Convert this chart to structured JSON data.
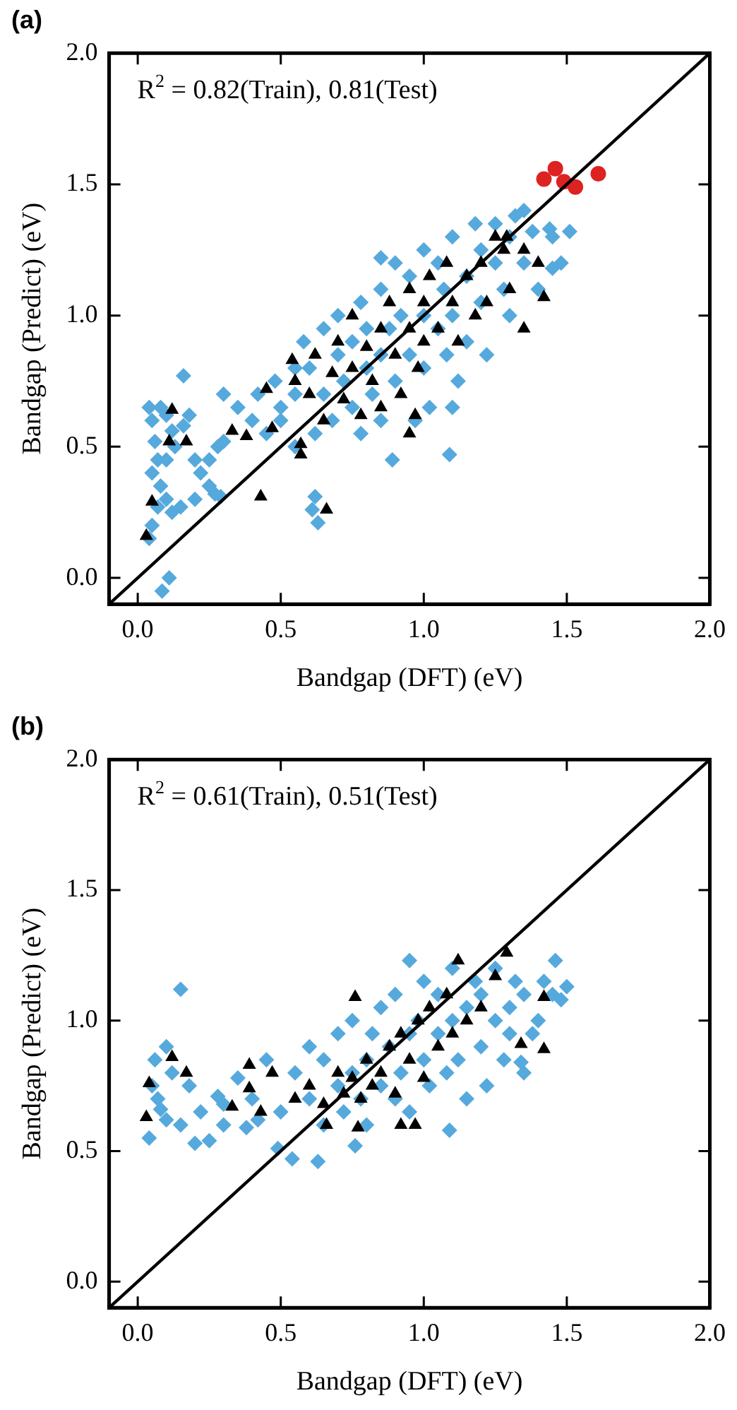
{
  "chart_data": [
    {
      "type": "scatter",
      "title": "(a)",
      "xlabel": "Bandgap (DFT) (eV)",
      "ylabel": "Bandgap (Predict) (eV)",
      "annotations": [
        "R$^{2}$ = 0.82(Train), 0.81(Test)"
      ],
      "xlim": [
        -0.1,
        2.0
      ],
      "ylim": [
        -0.1,
        2.0
      ],
      "xticks": [
        {
          "value": 0,
          "label": "0.0"
        },
        {
          "value": 0.5,
          "label": "0.5"
        },
        {
          "value": 1,
          "label": "1.0"
        },
        {
          "value": 1.5,
          "label": "1.5"
        },
        {
          "value": 2,
          "label": "2.0"
        }
      ],
      "yticks": [
        {
          "value": 0,
          "label": "0.0"
        },
        {
          "value": 0.5,
          "label": "0.5"
        },
        {
          "value": 1,
          "label": "1.0"
        },
        {
          "value": 1.5,
          "label": "1.5"
        },
        {
          "value": 2,
          "label": "2.0"
        }
      ],
      "legend": false,
      "grid": false,
      "series": [
        {
          "type": "scatter",
          "marker": "diamond",
          "color": "#56a9dc",
          "x": [
            0.05,
            0.06,
            0.07,
            0.05,
            0.08,
            0.1,
            0.07,
            0.12,
            0.15,
            0.1,
            0.13,
            0.16,
            0.18,
            0.2,
            0.22,
            0.25,
            0.2,
            0.08,
            0.1,
            0.12,
            0.05,
            0.04,
            0.11,
            0.085,
            0.25,
            0.28,
            0.3,
            0.35,
            0.3,
            0.4,
            0.45,
            0.42,
            0.48,
            0.5,
            0.55,
            0.55,
            0.62,
            0.63,
            0.61,
            0.29,
            0.27,
            0.16,
            0.04,
            0.5,
            0.55,
            0.58,
            0.6,
            0.62,
            0.65,
            0.65,
            0.68,
            0.7,
            0.7,
            0.72,
            0.75,
            0.75,
            0.78,
            0.78,
            0.8,
            0.8,
            0.82,
            0.85,
            0.85,
            0.85,
            0.88,
            0.9,
            0.9,
            0.92,
            0.95,
            0.95,
            0.97,
            1.0,
            1.0,
            1.0,
            1.02,
            1.05,
            1.05,
            1.07,
            1.08,
            1.1,
            1.1,
            1.12,
            1.15,
            1.15,
            1.18,
            1.2,
            1.2,
            1.22,
            1.25,
            1.25,
            1.28,
            1.3,
            1.3,
            1.32,
            1.35,
            1.38,
            1.4,
            1.45,
            1.45,
            1.35,
            1.09,
            1.1,
            0.85,
            1.44,
            1.51,
            1.48,
            0.89
          ],
          "values": [
            0.6,
            0.52,
            0.45,
            0.4,
            0.35,
            0.3,
            0.27,
            0.25,
            0.27,
            0.45,
            0.5,
            0.58,
            0.62,
            0.45,
            0.4,
            0.35,
            0.3,
            0.65,
            0.62,
            0.56,
            0.2,
            0.15,
            0.0,
            -0.05,
            0.45,
            0.5,
            0.52,
            0.65,
            0.7,
            0.6,
            0.55,
            0.7,
            0.75,
            0.6,
            0.8,
            0.5,
            0.31,
            0.21,
            0.26,
            0.31,
            0.32,
            0.77,
            0.65,
            0.65,
            0.7,
            0.9,
            0.8,
            0.55,
            0.95,
            0.7,
            0.6,
            0.85,
            1.0,
            0.75,
            0.9,
            0.65,
            1.05,
            0.55,
            0.8,
            0.95,
            0.7,
            1.1,
            0.85,
            0.6,
            0.95,
            1.2,
            0.75,
            1.0,
            0.85,
            1.15,
            0.6,
            1.0,
            0.8,
            1.25,
            0.65,
            0.95,
            1.2,
            1.1,
            0.85,
            1.3,
            1.0,
            0.75,
            1.15,
            0.9,
            1.35,
            1.05,
            1.25,
            0.85,
            1.2,
            1.35,
            1.1,
            1.3,
            1.0,
            1.38,
            1.2,
            1.32,
            1.1,
            1.18,
            1.3,
            1.4,
            0.47,
            0.65,
            1.22,
            1.33,
            1.32,
            1.2,
            0.45
          ]
        },
        {
          "type": "scatter",
          "marker": "triangle",
          "color": "#000000",
          "x": [
            0.12,
            0.11,
            0.17,
            0.05,
            0.03,
            0.33,
            0.38,
            0.43,
            0.66,
            0.54,
            0.45,
            0.47,
            0.57,
            0.57,
            0.55,
            0.6,
            0.62,
            0.65,
            0.68,
            0.7,
            0.72,
            0.75,
            0.75,
            0.78,
            0.8,
            0.82,
            0.85,
            0.85,
            0.88,
            0.9,
            0.92,
            0.95,
            0.95,
            0.98,
            1.0,
            1.0,
            1.02,
            1.05,
            1.08,
            1.1,
            1.12,
            1.15,
            1.18,
            1.2,
            1.22,
            1.25,
            1.28,
            1.3,
            1.35,
            1.4,
            1.35,
            0.95,
            0.97,
            1.42,
            1.29
          ],
          "values": [
            0.64,
            0.52,
            0.52,
            0.29,
            0.16,
            0.56,
            0.54,
            0.31,
            0.26,
            0.83,
            0.72,
            0.57,
            0.47,
            0.51,
            0.75,
            0.7,
            0.85,
            0.6,
            0.78,
            0.9,
            0.68,
            0.8,
            1.0,
            0.62,
            0.88,
            0.75,
            0.95,
            0.65,
            1.05,
            0.85,
            0.7,
            0.95,
            1.1,
            0.8,
            1.05,
            0.9,
            1.15,
            0.95,
            1.2,
            1.05,
            0.9,
            1.15,
            1.0,
            1.2,
            1.05,
            1.3,
            1.25,
            1.1,
            1.25,
            1.2,
            0.95,
            0.55,
            0.62,
            1.07,
            1.3
          ]
        },
        {
          "type": "scatter",
          "marker": "circle",
          "color": "#dd2222",
          "x": [
            1.42,
            1.46,
            1.49,
            1.53,
            1.61
          ],
          "values": [
            1.52,
            1.56,
            1.51,
            1.49,
            1.54
          ]
        },
        {
          "type": "line",
          "marker": "none",
          "color": "#000000",
          "x": [
            -0.1,
            2.0
          ],
          "values": [
            -0.1,
            2.0
          ]
        }
      ]
    },
    {
      "type": "scatter",
      "title": "(b)",
      "xlabel": "Bandgap (DFT) (eV)",
      "ylabel": "Bandgap (Predict) (eV)",
      "annotations": [
        "R$^{2}$ = 0.61(Train), 0.51(Test)"
      ],
      "xlim": [
        -0.1,
        2.0
      ],
      "ylim": [
        -0.1,
        2.0
      ],
      "xticks": [
        {
          "value": 0,
          "label": "0.0"
        },
        {
          "value": 0.5,
          "label": "0.5"
        },
        {
          "value": 1,
          "label": "1.0"
        },
        {
          "value": 1.5,
          "label": "1.5"
        },
        {
          "value": 2,
          "label": "2.0"
        }
      ],
      "yticks": [
        {
          "value": 0,
          "label": "0.0"
        },
        {
          "value": 0.5,
          "label": "0.5"
        },
        {
          "value": 1,
          "label": "1.0"
        },
        {
          "value": 1.5,
          "label": "1.5"
        },
        {
          "value": 2,
          "label": "2.0"
        }
      ],
      "legend": false,
      "grid": false,
      "series": [
        {
          "type": "scatter",
          "marker": "diamond",
          "color": "#56a9dc",
          "x": [
            0.06,
            0.08,
            0.04,
            0.05,
            0.07,
            0.1,
            0.12,
            0.15,
            0.1,
            0.2,
            0.25,
            0.28,
            0.22,
            0.18,
            0.3,
            0.38,
            0.35,
            0.4,
            0.45,
            0.49,
            0.54,
            0.63,
            0.5,
            0.55,
            0.6,
            0.6,
            0.65,
            0.65,
            0.7,
            0.7,
            0.72,
            0.75,
            0.75,
            0.78,
            0.8,
            0.8,
            0.82,
            0.85,
            0.85,
            0.88,
            0.9,
            0.9,
            0.92,
            0.95,
            0.95,
            0.98,
            1.0,
            1.0,
            1.02,
            1.05,
            1.05,
            1.08,
            1.1,
            1.1,
            1.12,
            1.15,
            1.15,
            1.18,
            1.2,
            1.2,
            1.22,
            1.25,
            1.25,
            1.28,
            1.3,
            1.3,
            1.32,
            1.35,
            1.35,
            1.38,
            1.4,
            1.42,
            1.45,
            1.5,
            1.46,
            1.48,
            1.34,
            1.09,
            0.76,
            0.95,
            0.15,
            0.3,
            0.42
          ],
          "values": [
            0.85,
            0.66,
            0.55,
            0.75,
            0.7,
            0.62,
            0.8,
            0.6,
            0.9,
            0.53,
            0.54,
            0.71,
            0.65,
            0.75,
            0.6,
            0.59,
            0.78,
            0.7,
            0.85,
            0.51,
            0.47,
            0.46,
            0.65,
            0.8,
            0.7,
            0.9,
            0.6,
            0.85,
            0.75,
            0.95,
            0.65,
            0.8,
            1.0,
            0.7,
            0.85,
            0.6,
            0.95,
            0.75,
            1.05,
            0.9,
            0.7,
            1.1,
            0.8,
            0.95,
            0.65,
            1.0,
            0.85,
            1.15,
            0.75,
            0.95,
            1.1,
            0.8,
            1.0,
            1.2,
            0.85,
            1.05,
            0.7,
            1.15,
            0.9,
            1.1,
            0.75,
            1.0,
            1.2,
            0.85,
            1.05,
            0.95,
            1.15,
            0.8,
            1.1,
            0.95,
            1.0,
            1.15,
            1.1,
            1.13,
            1.23,
            1.08,
            0.84,
            0.58,
            0.52,
            1.23,
            1.12,
            0.68,
            0.62
          ]
        },
        {
          "type": "scatter",
          "marker": "triangle",
          "color": "#000000",
          "x": [
            0.12,
            0.04,
            0.03,
            0.17,
            0.33,
            0.39,
            0.39,
            0.47,
            0.43,
            0.66,
            0.77,
            0.55,
            0.6,
            0.65,
            0.7,
            0.72,
            0.75,
            0.78,
            0.8,
            0.82,
            0.85,
            0.88,
            0.9,
            0.92,
            0.95,
            0.98,
            1.0,
            1.02,
            1.05,
            1.08,
            1.1,
            1.15,
            1.2,
            1.29,
            1.12,
            1.42,
            1.34,
            1.42,
            0.76,
            0.92,
            0.97,
            1.25
          ],
          "values": [
            0.86,
            0.76,
            0.63,
            0.8,
            0.67,
            0.83,
            0.74,
            0.8,
            0.65,
            0.6,
            0.59,
            0.7,
            0.75,
            0.68,
            0.8,
            0.72,
            0.78,
            0.7,
            0.85,
            0.75,
            0.8,
            0.9,
            0.72,
            0.95,
            0.85,
            1.0,
            0.78,
            1.05,
            0.9,
            1.1,
            0.95,
            1.0,
            1.05,
            1.26,
            1.23,
            1.09,
            0.91,
            0.89,
            1.09,
            0.6,
            0.6,
            1.17
          ]
        },
        {
          "type": "line",
          "marker": "none",
          "color": "#000000",
          "x": [
            -0.1,
            2.0
          ],
          "values": [
            -0.1,
            2.0
          ]
        }
      ]
    }
  ]
}
